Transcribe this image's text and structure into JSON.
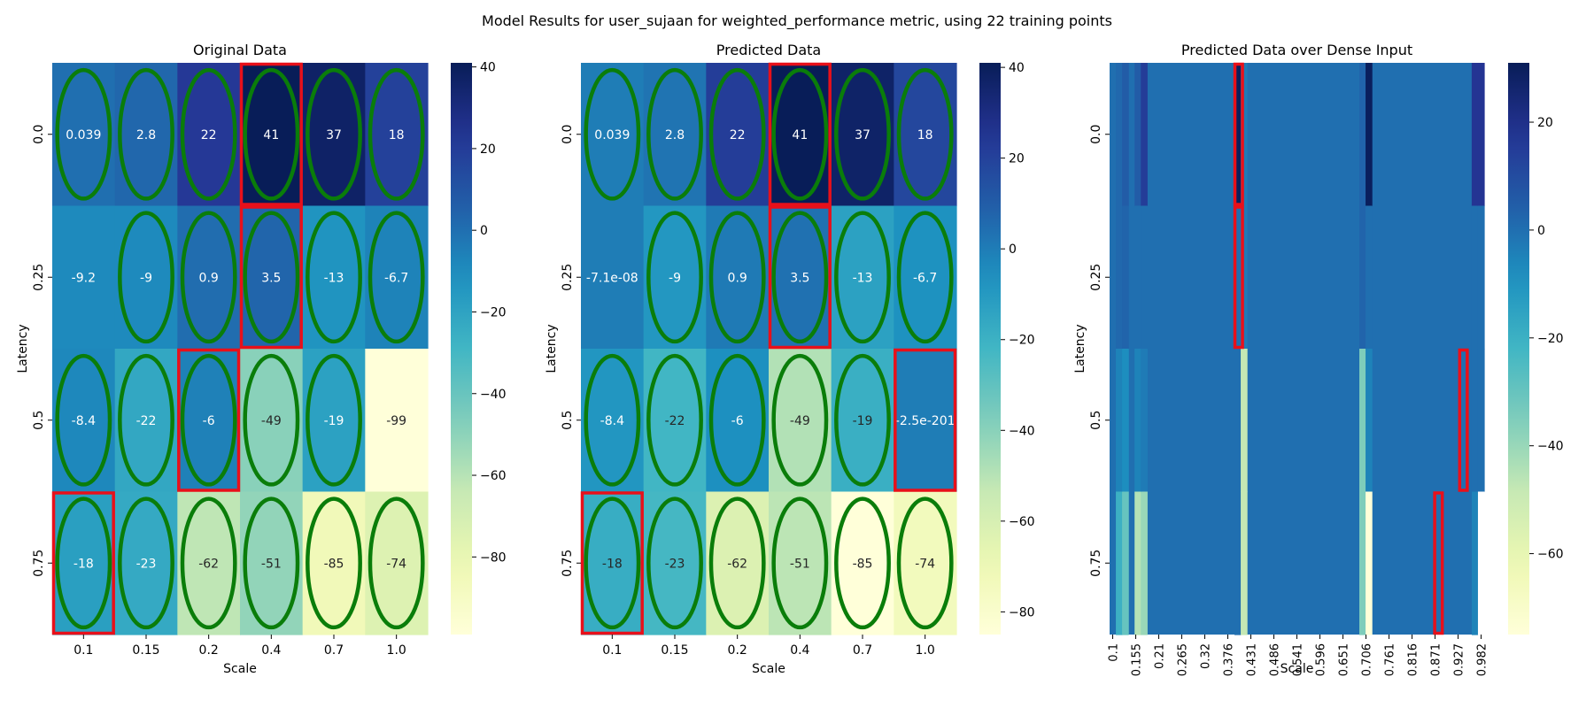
{
  "figure": {
    "suptitle": "Model Results for user_sujaan for weighted_performance metric, using 22 training points"
  },
  "chart_data": [
    {
      "type": "heatmap",
      "title": "Original Data",
      "xlabel": "Scale",
      "ylabel": "Latency",
      "x_ticks": [
        "0.1",
        "0.15",
        "0.2",
        "0.4",
        "0.7",
        "1.0"
      ],
      "y_ticks": [
        "0.0",
        "0.25",
        "0.5",
        "0.75"
      ],
      "values": [
        [
          0.039,
          2.8,
          22,
          41,
          37,
          18
        ],
        [
          -9.2,
          -9,
          0.9,
          3.5,
          -13,
          -6.7
        ],
        [
          -8.4,
          -22,
          -6,
          -49,
          -19,
          -99
        ],
        [
          -18,
          -23,
          -62,
          -51,
          -85,
          -74
        ]
      ],
      "annotations": [
        [
          "0.039",
          "2.8",
          "22",
          "41",
          "37",
          "18"
        ],
        [
          "-9.2",
          "-9",
          "0.9",
          "3.5",
          "-13",
          "-6.7"
        ],
        [
          "-8.4",
          "-22",
          "-6",
          "-49",
          "-19",
          "-99"
        ],
        [
          "-18",
          "-23",
          "-62",
          "-51",
          "-85",
          "-74"
        ]
      ],
      "colormap": "YlGnBu",
      "color_range": [
        -99,
        41
      ],
      "colorbar_ticks": [
        40,
        20,
        0,
        -20,
        -40,
        -60,
        -80
      ],
      "green_ellipses": [
        [
          0,
          0
        ],
        [
          0,
          1
        ],
        [
          0,
          2
        ],
        [
          0,
          3
        ],
        [
          0,
          4
        ],
        [
          0,
          5
        ],
        [
          1,
          1
        ],
        [
          1,
          2
        ],
        [
          1,
          3
        ],
        [
          1,
          4
        ],
        [
          1,
          5
        ],
        [
          2,
          0
        ],
        [
          2,
          1
        ],
        [
          2,
          2
        ],
        [
          2,
          3
        ],
        [
          2,
          4
        ],
        [
          3,
          0
        ],
        [
          3,
          1
        ],
        [
          3,
          2
        ],
        [
          3,
          3
        ],
        [
          3,
          4
        ],
        [
          3,
          5
        ]
      ],
      "red_boxes": [
        [
          0,
          3
        ],
        [
          1,
          3
        ],
        [
          2,
          2
        ],
        [
          3,
          0
        ]
      ]
    },
    {
      "type": "heatmap",
      "title": "Predicted Data",
      "xlabel": "Scale",
      "ylabel": "Latency",
      "x_ticks": [
        "0.1",
        "0.15",
        "0.2",
        "0.4",
        "0.7",
        "1.0"
      ],
      "y_ticks": [
        "0.0",
        "0.25",
        "0.5",
        "0.75"
      ],
      "values": [
        [
          0.039,
          2.8,
          22,
          41,
          37,
          18
        ],
        [
          0,
          -9,
          0.9,
          3.5,
          -13,
          -6.7
        ],
        [
          -8.4,
          -22,
          -6,
          -49,
          -19,
          0
        ],
        [
          -18,
          -23,
          -62,
          -51,
          -85,
          -74
        ]
      ],
      "annotations": [
        [
          "0.039",
          "2.8",
          "22",
          "41",
          "37",
          "18"
        ],
        [
          "-7.1e-08",
          "-9",
          "0.9",
          "3.5",
          "-13",
          "-6.7"
        ],
        [
          "-8.4",
          "-22",
          "-6",
          "-49",
          "-19",
          "-2.5e-201"
        ],
        [
          "-18",
          "-23",
          "-62",
          "-51",
          "-85",
          "-74"
        ]
      ],
      "colormap": "YlGnBu",
      "color_range": [
        -85,
        41
      ],
      "colorbar_ticks": [
        40,
        20,
        0,
        -20,
        -40,
        -60,
        -80
      ],
      "green_ellipses": [
        [
          0,
          0
        ],
        [
          0,
          1
        ],
        [
          0,
          2
        ],
        [
          0,
          3
        ],
        [
          0,
          4
        ],
        [
          0,
          5
        ],
        [
          1,
          1
        ],
        [
          1,
          2
        ],
        [
          1,
          3
        ],
        [
          1,
          4
        ],
        [
          1,
          5
        ],
        [
          2,
          0
        ],
        [
          2,
          1
        ],
        [
          2,
          2
        ],
        [
          2,
          3
        ],
        [
          2,
          4
        ],
        [
          3,
          0
        ],
        [
          3,
          1
        ],
        [
          3,
          2
        ],
        [
          3,
          3
        ],
        [
          3,
          4
        ],
        [
          3,
          5
        ]
      ],
      "red_boxes": [
        [
          0,
          3
        ],
        [
          1,
          3
        ],
        [
          2,
          5
        ],
        [
          3,
          0
        ]
      ]
    },
    {
      "type": "heatmap",
      "title": "Predicted Data over Dense Input",
      "xlabel": "Scale",
      "ylabel": "Latency",
      "x_ticks": [
        "0.1",
        "0.155",
        "0.21",
        "0.265",
        "0.32",
        "0.376",
        "0.431",
        "0.486",
        "0.541",
        "0.596",
        "0.651",
        "0.706",
        "0.761",
        "0.816",
        "0.871",
        "0.927",
        "0.982"
      ],
      "y_ticks": [
        "0.0",
        "0.25",
        "0.5",
        "0.75"
      ],
      "dense_columns": 60,
      "background_value": 0,
      "column_segments": [
        {
          "from": 1,
          "to": 2,
          "values": [
            2,
            2,
            -5,
            -20
          ]
        },
        {
          "from": 2,
          "to": 3,
          "values": [
            5,
            3,
            -8,
            -30
          ]
        },
        {
          "from": 4,
          "to": 5,
          "values": [
            5,
            0,
            -5,
            -45
          ]
        },
        {
          "from": 5,
          "to": 6,
          "values": [
            15,
            0,
            -3,
            -40
          ]
        },
        {
          "from": 20,
          "to": 21,
          "values": [
            30,
            0,
            0,
            0
          ]
        },
        {
          "from": 21,
          "to": 22,
          "values": [
            -3,
            -3,
            -48,
            -48
          ]
        },
        {
          "from": 40,
          "to": 41,
          "values": [
            3,
            3,
            -35,
            -35
          ]
        },
        {
          "from": 41,
          "to": 42,
          "values": [
            30,
            0,
            -5,
            -75
          ]
        },
        {
          "from": 58,
          "to": 59,
          "values": [
            18,
            0,
            0,
            -5
          ]
        },
        {
          "from": 59,
          "to": 60,
          "values": [
            18,
            0,
            0,
            null
          ]
        }
      ],
      "colormap": "YlGnBu",
      "color_range": [
        -75,
        31
      ],
      "colorbar_ticks": [
        20,
        0,
        -20,
        -40,
        -60
      ],
      "red_boxes_dense": [
        [
          0,
          20
        ],
        [
          1,
          20
        ],
        [
          2,
          56
        ],
        [
          3,
          52
        ]
      ]
    }
  ]
}
